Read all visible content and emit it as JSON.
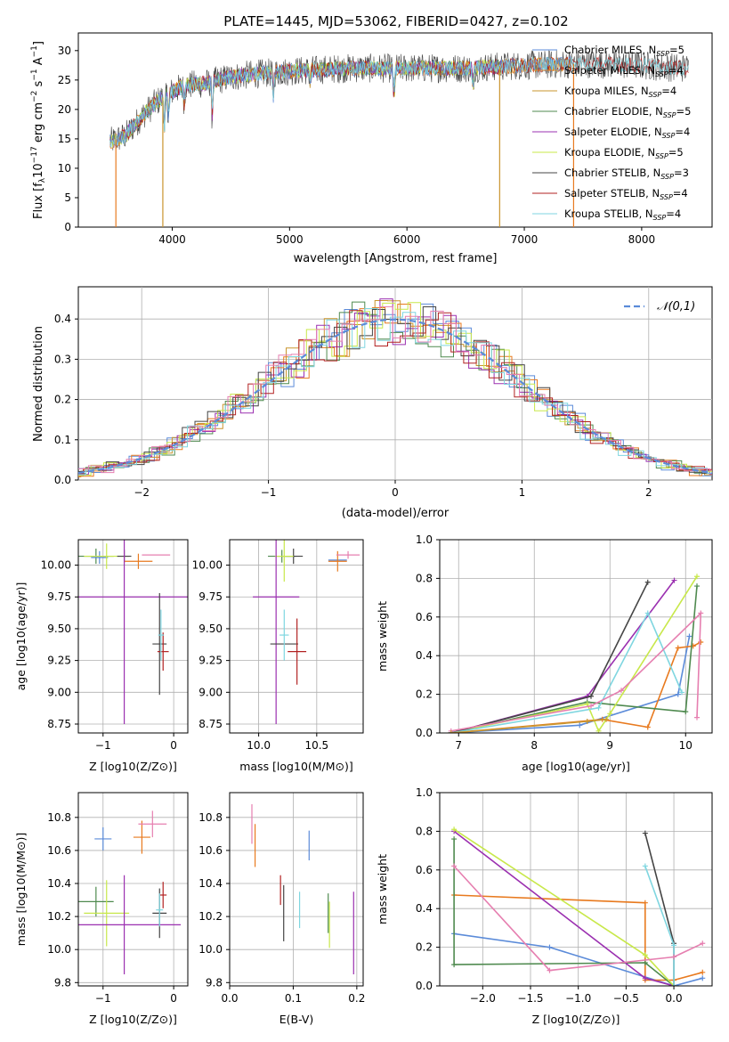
{
  "figure": {
    "title": "PLATE=1445, MJD=53062, FIBERID=0427, z=0.102"
  },
  "colors": {
    "chabrier_miles": "#5b8bd9",
    "salpeter_miles": "#e87a1f",
    "kroupa_miles": "#c9952e",
    "chabrier_elodie": "#4f8a4f",
    "salpeter_elodie": "#9b30b0",
    "kroupa_elodie": "#c8e84a",
    "chabrier_stelib": "#444444",
    "salpeter_stelib": "#b22222",
    "kroupa_stelib": "#7fd6e0",
    "pink": "#e67fb0",
    "normal_curve": "#5b8bd9"
  },
  "chart_data": [
    {
      "id": "spectrum",
      "type": "line",
      "title": "PLATE=1445, MJD=53062, FIBERID=0427, z=0.102",
      "xlabel": "wavelength [Angstrom, rest frame]",
      "ylabel": "Flux [f_λ 10^-17 erg cm^-2 s^-1 A^-1]",
      "xlim": [
        3200,
        8600
      ],
      "ylim": [
        0,
        33
      ],
      "xticks": [
        4000,
        5000,
        6000,
        7000,
        8000
      ],
      "yticks": [
        0,
        5,
        10,
        15,
        20,
        25,
        30
      ],
      "grid": false,
      "legend_position": "right",
      "series": [
        {
          "name": "Chabrier MILES, N_SSP=5",
          "color_key": "chabrier_miles"
        },
        {
          "name": "Salpeter MILES, N_SSP=4",
          "color_key": "salpeter_miles"
        },
        {
          "name": "Kroupa MILES, N_SSP=4",
          "color_key": "kroupa_miles"
        },
        {
          "name": "Chabrier ELODIE, N_SSP=5",
          "color_key": "chabrier_elodie"
        },
        {
          "name": "Salpeter ELODIE, N_SSP=4",
          "color_key": "salpeter_elodie"
        },
        {
          "name": "Kroupa ELODIE, N_SSP=5",
          "color_key": "kroupa_elodie"
        },
        {
          "name": "Chabrier STELIB, N_SSP=3",
          "color_key": "chabrier_stelib"
        },
        {
          "name": "Salpeter STELIB, N_SSP=4",
          "color_key": "salpeter_stelib"
        },
        {
          "name": "Kroupa STELIB, N_SSP=4",
          "color_key": "kroupa_stelib"
        }
      ],
      "continuum": [
        [
          3470,
          14.5
        ],
        [
          3600,
          15.5
        ],
        [
          3750,
          19
        ],
        [
          3850,
          21
        ],
        [
          3950,
          22.5
        ],
        [
          4100,
          24
        ],
        [
          4300,
          24.5
        ],
        [
          4500,
          25.5
        ],
        [
          4700,
          26
        ],
        [
          5000,
          26.5
        ],
        [
          5500,
          27
        ],
        [
          6000,
          27
        ],
        [
          6500,
          27
        ],
        [
          7000,
          27.5
        ],
        [
          7500,
          27.8
        ],
        [
          8000,
          27.5
        ],
        [
          8400,
          27
        ]
      ],
      "edge_drops": [
        {
          "x": 3520,
          "color_key": "salpeter_miles"
        },
        {
          "x": 3920,
          "color_key": "kroupa_miles"
        },
        {
          "x": 6790,
          "color_key": "kroupa_miles"
        },
        {
          "x": 7420,
          "color_key": "salpeter_miles"
        }
      ]
    },
    {
      "id": "residuals",
      "type": "line",
      "xlabel": "(data-model)/error",
      "ylabel": "Normed distribution",
      "xlim": [
        -2.5,
        2.5
      ],
      "ylim": [
        0,
        0.48
      ],
      "xticks": [
        -2,
        -1,
        0,
        1,
        2
      ],
      "yticks": [
        0.0,
        0.1,
        0.2,
        0.3,
        0.4
      ],
      "grid": true,
      "legend_position": "top-right",
      "legend": "𝒩(0,1)",
      "normal": {
        "mean": 0,
        "sigma": 1
      }
    },
    {
      "id": "age_vs_Z",
      "type": "scatter",
      "xlabel": "Z [log10(Z/Z⊙)]",
      "ylabel": "age  [log10(age/yr)]",
      "xlim": [
        -1.35,
        0.2
      ],
      "ylim": [
        8.68,
        10.2
      ],
      "xticks": [
        -1,
        0
      ],
      "yticks": [
        8.75,
        9.0,
        9.25,
        9.5,
        9.75,
        10.0
      ],
      "grid": true,
      "points": [
        {
          "x": -1.1,
          "y": 10.07,
          "xerr": 0.25,
          "yerr": 0.06,
          "c": "chabrier_elodie"
        },
        {
          "x": -1.05,
          "y": 10.06,
          "xerr": 0.12,
          "yerr": 0.05,
          "c": "chabrier_miles"
        },
        {
          "x": -0.95,
          "y": 10.07,
          "xerr": 0.32,
          "yerr": 0.1,
          "c": "kroupa_elodie"
        },
        {
          "x": -0.7,
          "y": 10.07,
          "xerr": 0.1,
          "yerr": 0.05,
          "c": "chabrier_stelib"
        },
        {
          "x": -0.5,
          "y": 10.03,
          "xerr": 0.2,
          "yerr": 0.06,
          "c": "salpeter_miles"
        },
        {
          "x": -0.25,
          "y": 10.08,
          "xerr": 0.2,
          "yerr": 0.0,
          "c": "pink"
        },
        {
          "x": -0.7,
          "y": 9.75,
          "xerr": 1.0,
          "yerr": 1.0,
          "c": "salpeter_elodie"
        },
        {
          "x": -0.2,
          "y": 9.38,
          "xerr": 0.1,
          "yerr": 0.4,
          "c": "chabrier_stelib"
        },
        {
          "x": -0.15,
          "y": 9.32,
          "xerr": 0.08,
          "yerr": 0.15,
          "c": "salpeter_stelib"
        },
        {
          "x": -0.18,
          "y": 9.45,
          "xerr": 0.04,
          "yerr": 0.2,
          "c": "kroupa_stelib"
        }
      ]
    },
    {
      "id": "age_vs_mass",
      "type": "scatter",
      "xlabel": "mass [log10(M/M⊙)]",
      "xlim": [
        9.75,
        10.9
      ],
      "ylim": [
        8.68,
        10.2
      ],
      "xticks": [
        10.0,
        10.5
      ],
      "yticks": [
        8.75,
        9.0,
        9.25,
        9.5,
        9.75,
        10.0
      ],
      "grid": true,
      "points": [
        {
          "x": 10.2,
          "y": 10.07,
          "xerr": 0.12,
          "yerr": 0.05,
          "c": "chabrier_elodie"
        },
        {
          "x": 10.3,
          "y": 10.07,
          "xerr": 0.08,
          "yerr": 0.06,
          "c": "chabrier_stelib"
        },
        {
          "x": 10.22,
          "y": 10.07,
          "xerr": 0.08,
          "yerr": 0.2,
          "c": "kroupa_elodie"
        },
        {
          "x": 10.68,
          "y": 10.04,
          "xerr": 0.08,
          "yerr": 0.0,
          "c": "chabrier_miles"
        },
        {
          "x": 10.68,
          "y": 10.03,
          "xerr": 0.08,
          "yerr": 0.08,
          "c": "salpeter_miles"
        },
        {
          "x": 10.77,
          "y": 10.08,
          "xerr": 0.1,
          "yerr": 0.03,
          "c": "pink"
        },
        {
          "x": 10.15,
          "y": 9.75,
          "xerr": 0.2,
          "yerr": 1.0,
          "c": "salpeter_elodie"
        },
        {
          "x": 10.22,
          "y": 9.38,
          "xerr": 0.12,
          "yerr": 0.0,
          "c": "chabrier_stelib"
        },
        {
          "x": 10.33,
          "y": 9.32,
          "xerr": 0.08,
          "yerr": 0.26,
          "c": "salpeter_stelib"
        },
        {
          "x": 10.22,
          "y": 9.45,
          "xerr": 0.04,
          "yerr": 0.2,
          "c": "kroupa_stelib"
        }
      ]
    },
    {
      "id": "weight_vs_age",
      "type": "line",
      "xlabel": "age  [log10(age/yr)]",
      "ylabel": "mass weight",
      "xlim": [
        6.75,
        10.35
      ],
      "ylim": [
        0,
        1.0
      ],
      "xticks": [
        7,
        8,
        9,
        10
      ],
      "yticks": [
        0.0,
        0.2,
        0.4,
        0.6,
        0.8,
        1.0
      ],
      "grid": true,
      "series": [
        {
          "c": "chabrier_miles",
          "x": [
            6.9,
            8.6,
            9.9,
            10.05
          ],
          "y": [
            0.0,
            0.04,
            0.2,
            0.5
          ]
        },
        {
          "c": "salpeter_miles",
          "x": [
            6.9,
            8.9,
            9.5,
            9.9,
            10.1,
            10.2
          ],
          "y": [
            0.0,
            0.07,
            0.03,
            0.44,
            0.45,
            0.47
          ]
        },
        {
          "c": "chabrier_elodie",
          "x": [
            6.9,
            8.7,
            10.0,
            10.15
          ],
          "y": [
            0.0,
            0.16,
            0.11,
            0.76
          ]
        },
        {
          "c": "salpeter_elodie",
          "x": [
            6.9,
            8.7,
            9.85
          ],
          "y": [
            0.0,
            0.19,
            0.79
          ]
        },
        {
          "c": "kroupa_elodie",
          "x": [
            6.9,
            8.7,
            8.85,
            9.0,
            10.15
          ],
          "y": [
            0.0,
            0.15,
            0.01,
            0.1,
            0.81
          ]
        },
        {
          "c": "chabrier_stelib",
          "x": [
            6.9,
            8.75,
            9.5
          ],
          "y": [
            0.0,
            0.19,
            0.78
          ]
        },
        {
          "c": "kroupa_stelib",
          "x": [
            6.9,
            8.85,
            9.5,
            9.95
          ],
          "y": [
            0.0,
            0.13,
            0.62,
            0.21
          ]
        },
        {
          "c": "pink",
          "x": [
            6.9,
            8.75,
            9.15,
            10.2,
            10.15
          ],
          "y": [
            0.01,
            0.14,
            0.22,
            0.62,
            0.08
          ]
        },
        {
          "c": "kroupa_miles",
          "x": [
            6.9,
            8.7,
            8.95
          ],
          "y": [
            0.0,
            0.06,
            0.07
          ]
        }
      ]
    },
    {
      "id": "mass_vs_Z",
      "type": "scatter",
      "xlabel": "Z [log10(Z/Z⊙)]",
      "ylabel": "mass [log10(M/M⊙)]",
      "xlim": [
        -1.35,
        0.2
      ],
      "ylim": [
        9.78,
        10.95
      ],
      "xticks": [
        -1,
        0
      ],
      "yticks": [
        9.8,
        10.0,
        10.2,
        10.4,
        10.6,
        10.8
      ],
      "grid": true,
      "points": [
        {
          "x": -1.0,
          "y": 10.67,
          "xerr": 0.12,
          "yerr": 0.07,
          "c": "chabrier_miles"
        },
        {
          "x": -0.45,
          "y": 10.68,
          "xerr": 0.12,
          "yerr": 0.1,
          "c": "salpeter_miles"
        },
        {
          "x": -0.3,
          "y": 10.76,
          "xerr": 0.2,
          "yerr": 0.08,
          "c": "pink"
        },
        {
          "x": -1.1,
          "y": 10.29,
          "xerr": 0.25,
          "yerr": 0.09,
          "c": "chabrier_elodie"
        },
        {
          "x": -0.95,
          "y": 10.22,
          "xerr": 0.32,
          "yerr": 0.2,
          "c": "kroupa_elodie"
        },
        {
          "x": -0.7,
          "y": 10.15,
          "xerr": 0.8,
          "yerr": 0.3,
          "c": "salpeter_elodie"
        },
        {
          "x": -0.2,
          "y": 10.22,
          "xerr": 0.1,
          "yerr": 0.15,
          "c": "chabrier_stelib"
        },
        {
          "x": -0.15,
          "y": 10.33,
          "xerr": 0.05,
          "yerr": 0.08,
          "c": "salpeter_stelib"
        },
        {
          "x": -0.2,
          "y": 10.24,
          "xerr": 0.05,
          "yerr": 0.1,
          "c": "kroupa_stelib"
        }
      ]
    },
    {
      "id": "mass_vs_ebv",
      "type": "scatter",
      "xlabel": "E(B-V)",
      "xlim": [
        0.0,
        0.21
      ],
      "ylim": [
        9.78,
        10.95
      ],
      "xticks": [
        0.0,
        0.1,
        0.2
      ],
      "yticks": [
        9.8,
        10.0,
        10.2,
        10.4,
        10.6,
        10.8
      ],
      "grid": true,
      "points": [
        {
          "x": 0.035,
          "y": 10.76,
          "xerr": 0,
          "yerr": 0.12,
          "c": "pink"
        },
        {
          "x": 0.04,
          "y": 10.63,
          "xerr": 0,
          "yerr": 0.13,
          "c": "salpeter_miles"
        },
        {
          "x": 0.125,
          "y": 10.63,
          "xerr": 0,
          "yerr": 0.09,
          "c": "chabrier_miles"
        },
        {
          "x": 0.08,
          "y": 10.36,
          "xerr": 0,
          "yerr": 0.09,
          "c": "salpeter_stelib"
        },
        {
          "x": 0.085,
          "y": 10.22,
          "xerr": 0,
          "yerr": 0.17,
          "c": "chabrier_stelib"
        },
        {
          "x": 0.11,
          "y": 10.24,
          "xerr": 0,
          "yerr": 0.11,
          "c": "kroupa_stelib"
        },
        {
          "x": 0.155,
          "y": 10.22,
          "xerr": 0,
          "yerr": 0.12,
          "c": "chabrier_elodie"
        },
        {
          "x": 0.157,
          "y": 10.15,
          "xerr": 0,
          "yerr": 0.14,
          "c": "kroupa_elodie"
        },
        {
          "x": 0.195,
          "y": 10.1,
          "xerr": 0,
          "yerr": 0.25,
          "c": "salpeter_elodie"
        }
      ]
    },
    {
      "id": "weight_vs_Z",
      "type": "line",
      "xlabel": "Z [log10(Z/Z⊙)]",
      "ylabel": "mass weight",
      "xlim": [
        -2.45,
        0.4
      ],
      "ylim": [
        0,
        1.0
      ],
      "xticks": [
        -2.0,
        -1.5,
        -1.0,
        -0.5,
        0.0
      ],
      "yticks": [
        0.0,
        0.2,
        0.4,
        0.6,
        0.8,
        1.0
      ],
      "grid": true,
      "series": [
        {
          "c": "chabrier_miles",
          "x": [
            -2.3,
            -1.3,
            0.0,
            0.3
          ],
          "y": [
            0.27,
            0.2,
            0.0,
            0.04
          ]
        },
        {
          "c": "salpeter_miles",
          "x": [
            -2.3,
            -0.3,
            -0.3,
            0.0,
            0.3
          ],
          "y": [
            0.47,
            0.43,
            0.03,
            0.03,
            0.07
          ]
        },
        {
          "c": "chabrier_elodie",
          "x": [
            -2.3,
            -2.3,
            -0.3,
            0.0
          ],
          "y": [
            0.76,
            0.11,
            0.12,
            0.0
          ]
        },
        {
          "c": "salpeter_elodie",
          "x": [
            -2.3,
            -0.3,
            0.0
          ],
          "y": [
            0.8,
            0.04,
            0.0
          ]
        },
        {
          "c": "kroupa_elodie",
          "x": [
            -2.3,
            -0.3,
            0.0
          ],
          "y": [
            0.81,
            0.16,
            0.0
          ]
        },
        {
          "c": "chabrier_stelib",
          "x": [
            -0.3,
            0.0,
            0.0
          ],
          "y": [
            0.79,
            0.22,
            0.0
          ]
        },
        {
          "c": "kroupa_stelib",
          "x": [
            -0.3,
            0.0,
            0.0
          ],
          "y": [
            0.62,
            0.21,
            0.0
          ]
        },
        {
          "c": "pink",
          "x": [
            -2.3,
            -1.3,
            0.0,
            0.3
          ],
          "y": [
            0.62,
            0.08,
            0.15,
            0.22
          ]
        }
      ]
    }
  ]
}
